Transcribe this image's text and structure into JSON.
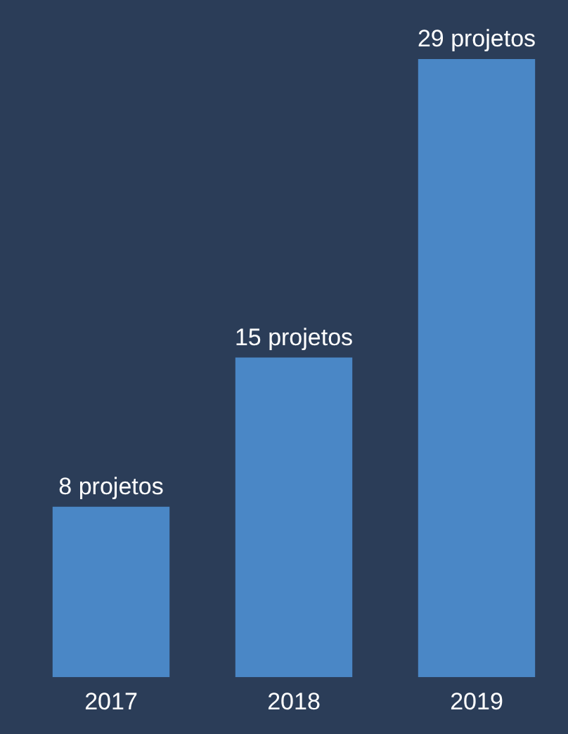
{
  "chart_data": {
    "type": "bar",
    "categories": [
      "2017",
      "2018",
      "2019"
    ],
    "values": [
      8,
      15,
      29
    ],
    "color": "#4a87c6",
    "value_labels": [
      "8 projetos",
      "15 projetos",
      "29 projetos"
    ],
    "grid": false
  }
}
